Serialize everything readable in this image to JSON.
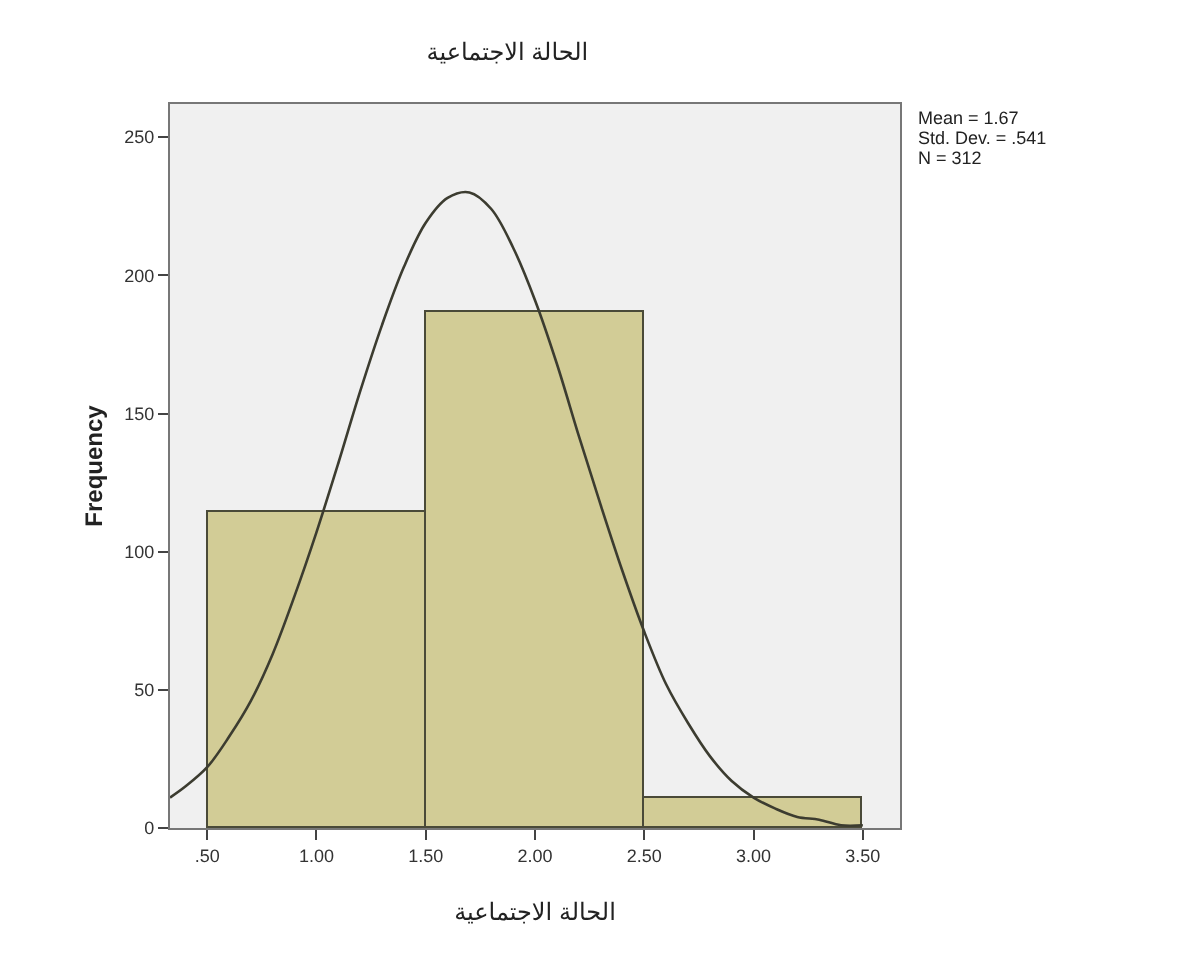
{
  "chart_data": {
    "type": "histogram",
    "title": "الحالة الاجتماعية",
    "xlabel": "الحالة الاجتماعية",
    "ylabel": "Frequency",
    "bins": [
      0.5,
      1.5,
      2.5,
      3.5
    ],
    "values": [
      114,
      187,
      11
    ],
    "color": "#d2cc96",
    "series": [
      {
        "type": "line",
        "color": "#3c3c30",
        "x": [
          0.33,
          0.4,
          0.5,
          0.6,
          0.7,
          0.8,
          0.9,
          1.0,
          1.1,
          1.2,
          1.3,
          1.4,
          1.5,
          1.6,
          1.7,
          1.8,
          1.9,
          2.0,
          2.1,
          2.2,
          2.3,
          2.4,
          2.5,
          2.6,
          2.7,
          2.8,
          2.9,
          3.0,
          3.1,
          3.2,
          3.3,
          3.4,
          3.5
        ],
        "values": [
          11,
          15,
          22,
          33,
          46,
          63,
          84,
          107,
          132,
          158,
          182,
          203,
          219,
          228,
          230,
          224,
          210,
          191,
          168,
          142,
          117,
          93,
          71,
          52,
          38,
          26,
          17,
          11,
          7,
          4,
          3,
          1,
          1
        ]
      }
    ],
    "xlim": [
      0.33,
      3.67
    ],
    "xticks": [
      {
        "value": 0.5,
        "label": ".50"
      },
      {
        "value": 1,
        "label": "1.00"
      },
      {
        "value": 1.5,
        "label": "1.50"
      },
      {
        "value": 2,
        "label": "2.00"
      },
      {
        "value": 2.5,
        "label": "2.50"
      },
      {
        "value": 3,
        "label": "3.00"
      },
      {
        "value": 3.5,
        "label": "3.50"
      }
    ],
    "ylim": [
      0,
      262
    ],
    "yticks": [
      0,
      50,
      100,
      150,
      200,
      250
    ],
    "grid": false,
    "marker": "none",
    "line_style": "solid",
    "annotations": [
      "Mean = 1.67",
      "Std. Dev. = .541",
      "N = 312"
    ]
  }
}
